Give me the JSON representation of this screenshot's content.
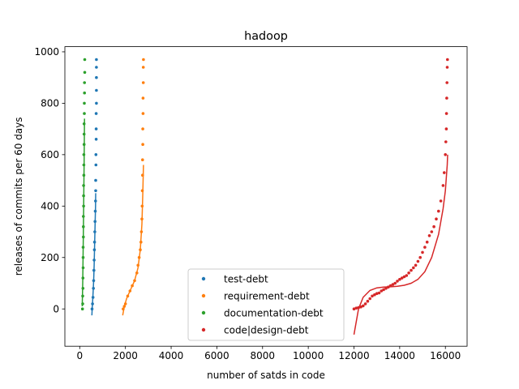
{
  "chart_data": {
    "type": "scatter",
    "title": "hadoop",
    "xlabel": "number of satds in code",
    "ylabel": "releases of commits per 60 days",
    "xlim": [
      -650,
      16950
    ],
    "ylim": [
      -145,
      1020
    ],
    "xticks": [
      0,
      2000,
      4000,
      6000,
      8000,
      10000,
      12000,
      14000,
      16000
    ],
    "yticks": [
      0,
      200,
      400,
      600,
      800,
      1000
    ],
    "grid": false,
    "legend_position": "lower center",
    "series": [
      {
        "name": "test-debt",
        "color": "#1f77b4",
        "points": [
          [
            540,
            0
          ],
          [
            560,
            20
          ],
          [
            580,
            45
          ],
          [
            600,
            80
          ],
          [
            610,
            110
          ],
          [
            620,
            150
          ],
          [
            630,
            190
          ],
          [
            640,
            230
          ],
          [
            650,
            260
          ],
          [
            660,
            300
          ],
          [
            670,
            340
          ],
          [
            680,
            380
          ],
          [
            690,
            420
          ],
          [
            700,
            460
          ],
          [
            700,
            500
          ],
          [
            710,
            560
          ],
          [
            710,
            600
          ],
          [
            720,
            660
          ],
          [
            720,
            700
          ],
          [
            720,
            760
          ],
          [
            730,
            800
          ],
          [
            730,
            850
          ],
          [
            730,
            900
          ],
          [
            730,
            940
          ],
          [
            730,
            970
          ]
        ],
        "fit": [
          [
            530,
            -25
          ],
          [
            550,
            10
          ],
          [
            570,
            40
          ],
          [
            590,
            70
          ],
          [
            610,
            110
          ],
          [
            630,
            170
          ],
          [
            650,
            240
          ],
          [
            670,
            320
          ],
          [
            690,
            400
          ],
          [
            700,
            450
          ]
        ]
      },
      {
        "name": "requirement-debt",
        "color": "#ff7f0e",
        "points": [
          [
            1900,
            0
          ],
          [
            1950,
            10
          ],
          [
            2000,
            20
          ],
          [
            2100,
            50
          ],
          [
            2200,
            70
          ],
          [
            2300,
            90
          ],
          [
            2400,
            110
          ],
          [
            2500,
            140
          ],
          [
            2550,
            170
          ],
          [
            2600,
            200
          ],
          [
            2650,
            230
          ],
          [
            2680,
            260
          ],
          [
            2700,
            300
          ],
          [
            2720,
            350
          ],
          [
            2730,
            400
          ],
          [
            2740,
            460
          ],
          [
            2750,
            520
          ],
          [
            2750,
            580
          ],
          [
            2760,
            640
          ],
          [
            2760,
            700
          ],
          [
            2770,
            760
          ],
          [
            2770,
            820
          ],
          [
            2780,
            880
          ],
          [
            2780,
            940
          ],
          [
            2790,
            970
          ]
        ],
        "fit": [
          [
            1880,
            -25
          ],
          [
            1950,
            10
          ],
          [
            2050,
            40
          ],
          [
            2200,
            70
          ],
          [
            2400,
            110
          ],
          [
            2550,
            160
          ],
          [
            2650,
            230
          ],
          [
            2720,
            330
          ],
          [
            2760,
            450
          ],
          [
            2790,
            560
          ]
        ]
      },
      {
        "name": "documentation-debt",
        "color": "#2ca02c",
        "points": [
          [
            120,
            0
          ],
          [
            130,
            20
          ],
          [
            130,
            50
          ],
          [
            140,
            80
          ],
          [
            140,
            120
          ],
          [
            150,
            160
          ],
          [
            150,
            200
          ],
          [
            150,
            240
          ],
          [
            160,
            280
          ],
          [
            160,
            320
          ],
          [
            160,
            360
          ],
          [
            170,
            400
          ],
          [
            170,
            440
          ],
          [
            170,
            480
          ],
          [
            180,
            520
          ],
          [
            180,
            560
          ],
          [
            180,
            600
          ],
          [
            190,
            640
          ],
          [
            190,
            680
          ],
          [
            190,
            720
          ],
          [
            200,
            760
          ],
          [
            200,
            800
          ],
          [
            210,
            840
          ],
          [
            210,
            880
          ],
          [
            220,
            920
          ],
          [
            220,
            970
          ]
        ],
        "fit": [
          [
            110,
            10
          ],
          [
            130,
            100
          ],
          [
            150,
            220
          ],
          [
            170,
            380
          ],
          [
            190,
            560
          ],
          [
            210,
            740
          ]
        ]
      },
      {
        "name": "code|design-debt",
        "color": "#d62728",
        "points": [
          [
            12000,
            0
          ],
          [
            12100,
            3
          ],
          [
            12200,
            5
          ],
          [
            12300,
            8
          ],
          [
            12400,
            12
          ],
          [
            12500,
            20
          ],
          [
            12600,
            30
          ],
          [
            12700,
            40
          ],
          [
            12800,
            50
          ],
          [
            12900,
            55
          ],
          [
            13000,
            60
          ],
          [
            13100,
            62
          ],
          [
            13200,
            70
          ],
          [
            13300,
            75
          ],
          [
            13400,
            80
          ],
          [
            13500,
            85
          ],
          [
            13600,
            90
          ],
          [
            13700,
            95
          ],
          [
            13800,
            100
          ],
          [
            13900,
            108
          ],
          [
            14000,
            115
          ],
          [
            14100,
            120
          ],
          [
            14200,
            125
          ],
          [
            14300,
            130
          ],
          [
            14400,
            140
          ],
          [
            14500,
            150
          ],
          [
            14600,
            160
          ],
          [
            14700,
            170
          ],
          [
            14800,
            185
          ],
          [
            14900,
            200
          ],
          [
            15000,
            220
          ],
          [
            15100,
            240
          ],
          [
            15200,
            260
          ],
          [
            15300,
            285
          ],
          [
            15400,
            300
          ],
          [
            15500,
            320
          ],
          [
            15600,
            350
          ],
          [
            15700,
            380
          ],
          [
            15800,
            420
          ],
          [
            15900,
            480
          ],
          [
            15950,
            530
          ],
          [
            16000,
            600
          ],
          [
            16020,
            650
          ],
          [
            16040,
            700
          ],
          [
            16050,
            760
          ],
          [
            16060,
            820
          ],
          [
            16070,
            880
          ],
          [
            16080,
            940
          ],
          [
            16090,
            970
          ]
        ],
        "fit": [
          [
            12000,
            -100
          ],
          [
            12200,
            0
          ],
          [
            12400,
            45
          ],
          [
            12700,
            72
          ],
          [
            13000,
            82
          ],
          [
            13300,
            85
          ],
          [
            13600,
            86
          ],
          [
            13900,
            88
          ],
          [
            14200,
            92
          ],
          [
            14500,
            100
          ],
          [
            14800,
            115
          ],
          [
            15100,
            145
          ],
          [
            15400,
            200
          ],
          [
            15700,
            290
          ],
          [
            15900,
            390
          ],
          [
            16000,
            460
          ],
          [
            16080,
            560
          ],
          [
            16100,
            600
          ]
        ]
      }
    ]
  }
}
